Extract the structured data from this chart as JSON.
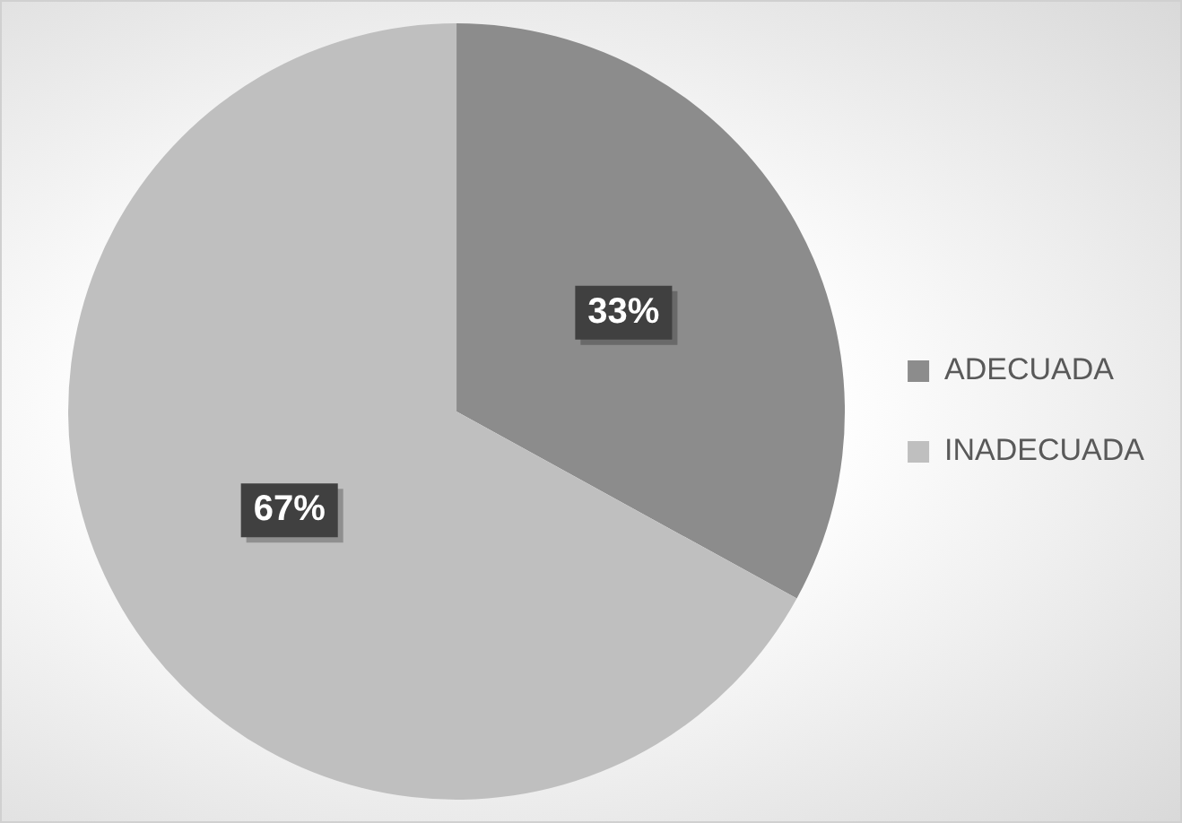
{
  "chart_data": {
    "type": "pie",
    "categories": [
      "ADECUADA",
      "INADECUADA"
    ],
    "values": [
      33,
      67
    ],
    "colors": [
      "#8c8c8c",
      "#bfbfbf"
    ],
    "value_labels": [
      "33%",
      "67%"
    ],
    "legend": "right"
  }
}
